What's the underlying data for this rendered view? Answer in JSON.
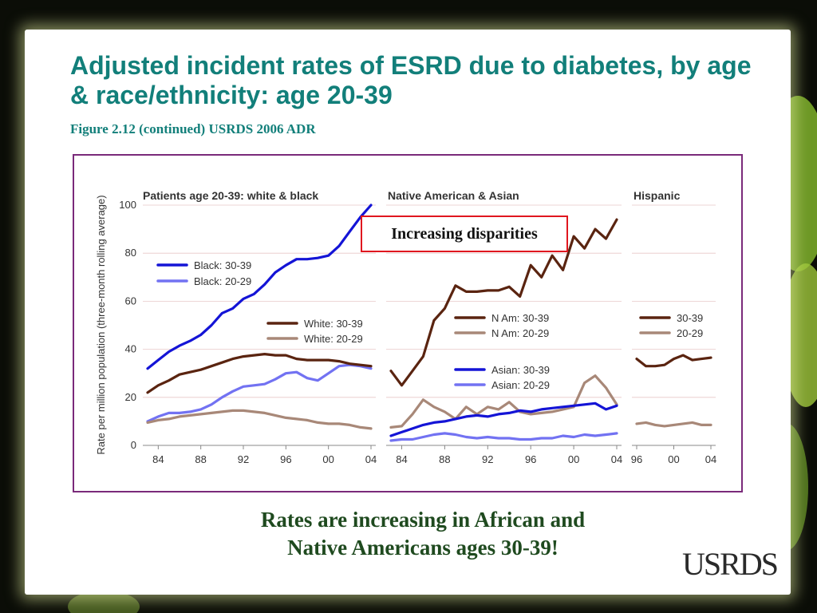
{
  "slide": {
    "title": "Adjusted incident rates of ESRD due to diabetes, by age & race/ethnicity: age 20-39",
    "subtitle": "Figure 2.12 (continued) USRDS 2006 ADR",
    "callout": "Increasing disparities",
    "conclusion_line1": "Rates are increasing in African and",
    "conclusion_line2": "Native Americans ages 30-39!",
    "logo": "USRDS"
  },
  "colors": {
    "title": "#127f7a",
    "frame": "#7a2a7a",
    "callout_border": "#e0171f",
    "conclusion": "#1f4a1f",
    "dark_blue": "#1414d6",
    "light_blue": "#7272f2",
    "dark_brown": "#5a2410",
    "light_brown": "#a88878"
  },
  "chart_data": [
    {
      "type": "line",
      "title": "Patients age 20-39: white & black",
      "ylabel": "Rate per million population (three-month rolling average)",
      "ylim": [
        0,
        100
      ],
      "yticks": [
        0,
        20,
        40,
        60,
        80,
        100
      ],
      "xlim": [
        1983,
        2004
      ],
      "xticks": [
        {
          "v": 1984,
          "label": "84"
        },
        {
          "v": 1988,
          "label": "88"
        },
        {
          "v": 1992,
          "label": "92"
        },
        {
          "v": 1996,
          "label": "96"
        },
        {
          "v": 2000,
          "label": "00"
        },
        {
          "v": 2004,
          "label": "04"
        }
      ],
      "grid": true,
      "series": [
        {
          "name": "Black: 30-39",
          "color": "#1414d6",
          "legend": true,
          "x": [
            1983,
            1984,
            1985,
            1986,
            1987,
            1988,
            1989,
            1990,
            1991,
            1992,
            1993,
            1994,
            1995,
            1996,
            1997,
            1998,
            1999,
            2000,
            2001,
            2002,
            2003,
            2004
          ],
          "y": [
            32,
            35.5,
            39,
            41.5,
            43.5,
            46,
            50,
            55,
            57,
            61,
            63,
            67,
            72,
            75,
            77.5,
            77.5,
            78,
            79,
            83,
            89,
            95,
            100
          ]
        },
        {
          "name": "Black: 20-29",
          "color": "#7272f2",
          "legend": true,
          "x": [
            1983,
            1984,
            1985,
            1986,
            1987,
            1988,
            1989,
            1990,
            1991,
            1992,
            1993,
            1994,
            1995,
            1996,
            1997,
            1998,
            1999,
            2000,
            2001,
            2002,
            2003,
            2004
          ],
          "y": [
            10,
            12,
            13.5,
            13.5,
            14,
            15,
            17,
            20,
            22.5,
            24.5,
            25,
            25.5,
            27.5,
            30,
            30.5,
            28,
            27,
            30,
            33,
            33.5,
            33,
            32
          ]
        },
        {
          "name": "White: 30-39",
          "color": "#5a2410",
          "legend": true,
          "x": [
            1983,
            1984,
            1985,
            1986,
            1987,
            1988,
            1989,
            1990,
            1991,
            1992,
            1993,
            1994,
            1995,
            1996,
            1997,
            1998,
            1999,
            2000,
            2001,
            2002,
            2003,
            2004
          ],
          "y": [
            22,
            25,
            27,
            29.5,
            30.5,
            31.5,
            33,
            34.5,
            36,
            37,
            37.5,
            38,
            37.5,
            37.5,
            36,
            35.5,
            35.5,
            35.5,
            35,
            34,
            33.5,
            33
          ]
        },
        {
          "name": "White: 20-29",
          "color": "#a88878",
          "legend": true,
          "x": [
            1983,
            1984,
            1985,
            1986,
            1987,
            1988,
            1989,
            1990,
            1991,
            1992,
            1993,
            1994,
            1995,
            1996,
            1997,
            1998,
            1999,
            2000,
            2001,
            2002,
            2003,
            2004
          ],
          "y": [
            9.5,
            10.5,
            11,
            12,
            12.5,
            13,
            13.5,
            14,
            14.5,
            14.5,
            14,
            13.5,
            12.5,
            11.5,
            11,
            10.5,
            9.5,
            9,
            9,
            8.5,
            7.5,
            7
          ]
        }
      ]
    },
    {
      "type": "line",
      "title": "Native American & Asian",
      "ylim": [
        0,
        100
      ],
      "xlim": [
        1983,
        2004
      ],
      "xticks": [
        {
          "v": 1984,
          "label": "84"
        },
        {
          "v": 1988,
          "label": "88"
        },
        {
          "v": 1992,
          "label": "92"
        },
        {
          "v": 1996,
          "label": "96"
        },
        {
          "v": 2000,
          "label": "00"
        },
        {
          "v": 2004,
          "label": "04"
        }
      ],
      "grid": true,
      "series": [
        {
          "name": "N Am: 30-39",
          "color": "#5a2410",
          "legend": true,
          "x": [
            1983,
            1984,
            1985,
            1986,
            1987,
            1988,
            1989,
            1990,
            1991,
            1992,
            1993,
            1994,
            1995,
            1996,
            1997,
            1998,
            1999,
            2000,
            2001,
            2002,
            2003,
            2004
          ],
          "y": [
            31,
            25,
            31,
            37,
            52,
            57,
            66.5,
            64,
            64,
            64.5,
            64.5,
            66,
            62,
            75,
            70,
            79,
            73,
            87,
            82,
            90,
            86,
            94
          ]
        },
        {
          "name": "N Am: 20-29",
          "color": "#a88878",
          "legend": true,
          "x": [
            1983,
            1984,
            1985,
            1986,
            1987,
            1988,
            1989,
            1990,
            1991,
            1992,
            1993,
            1994,
            1995,
            1996,
            1997,
            1998,
            1999,
            2000,
            2001,
            2002,
            2003,
            2004
          ],
          "y": [
            7.5,
            8,
            13,
            19,
            16,
            14,
            11,
            16,
            13,
            16,
            15,
            18,
            14,
            13,
            13.5,
            14,
            15,
            16,
            26,
            29,
            24,
            17
          ]
        },
        {
          "name": "Asian: 30-39",
          "color": "#1414d6",
          "legend": true,
          "x": [
            1983,
            1984,
            1985,
            1986,
            1987,
            1988,
            1989,
            1990,
            1991,
            1992,
            1993,
            1994,
            1995,
            1996,
            1997,
            1998,
            1999,
            2000,
            2001,
            2002,
            2003,
            2004
          ],
          "y": [
            4,
            5.5,
            7,
            8.5,
            9.5,
            10,
            11,
            12,
            12.5,
            12,
            13,
            13.5,
            14.5,
            14,
            15,
            15.5,
            16,
            16.5,
            17,
            17.5,
            15,
            16.5
          ]
        },
        {
          "name": "Asian: 20-29",
          "color": "#7272f2",
          "legend": true,
          "x": [
            1983,
            1984,
            1985,
            1986,
            1987,
            1988,
            1989,
            1990,
            1991,
            1992,
            1993,
            1994,
            1995,
            1996,
            1997,
            1998,
            1999,
            2000,
            2001,
            2002,
            2003,
            2004
          ],
          "y": [
            2,
            2.5,
            2.5,
            3.5,
            4.5,
            5,
            4.5,
            3.5,
            3,
            3.5,
            3,
            3,
            2.5,
            2.5,
            3,
            3,
            4,
            3.5,
            4.5,
            4,
            4.5,
            5
          ]
        }
      ]
    },
    {
      "type": "line",
      "title": "Hispanic",
      "ylim": [
        0,
        100
      ],
      "xlim": [
        1996,
        2004
      ],
      "xticks": [
        {
          "v": 1996,
          "label": "96"
        },
        {
          "v": 2000,
          "label": "00"
        },
        {
          "v": 2004,
          "label": "04"
        }
      ],
      "grid": true,
      "series": [
        {
          "name": "30-39",
          "color": "#5a2410",
          "legend": true,
          "x": [
            1996,
            1997,
            1998,
            1999,
            2000,
            2001,
            2002,
            2003,
            2004
          ],
          "y": [
            36,
            33,
            33,
            33.5,
            36,
            37.5,
            35.5,
            36,
            36.5
          ]
        },
        {
          "name": "20-29",
          "color": "#a88878",
          "legend": true,
          "x": [
            1996,
            1997,
            1998,
            1999,
            2000,
            2001,
            2002,
            2003,
            2004
          ],
          "y": [
            9,
            9.5,
            8.5,
            8,
            8.5,
            9,
            9.5,
            8.5,
            8.5
          ]
        }
      ]
    }
  ]
}
